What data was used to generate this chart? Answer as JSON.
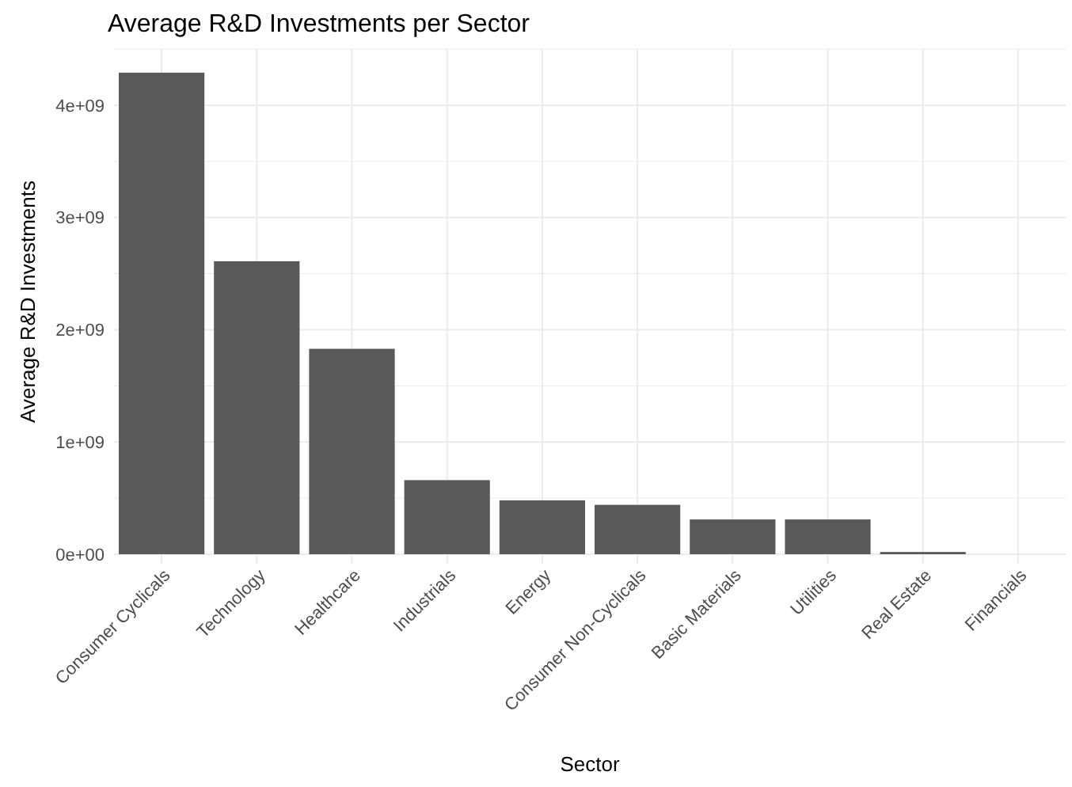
{
  "chart_data": {
    "type": "bar",
    "title": "Average R&D Investments per Sector",
    "xlabel": "Sector",
    "ylabel": "Average R&D Investments",
    "categories": [
      "Consumer Cyclicals",
      "Technology",
      "Healthcare",
      "Industrials",
      "Energy",
      "Consumer Non-Cyclicals",
      "Basic Materials",
      "Utilities",
      "Real Estate",
      "Financials"
    ],
    "values": [
      4290000000.0,
      2610000000.0,
      1830000000.0,
      660000000.0,
      480000000.0,
      440000000.0,
      310000000.0,
      310000000.0,
      20000000.0,
      0
    ],
    "color": "#595959",
    "ylim": [
      0,
      4500000000.0
    ],
    "yticks": [
      {
        "value": 0,
        "label": "0e+00"
      },
      {
        "value": 1000000000.0,
        "label": "1e+09"
      },
      {
        "value": 2000000000.0,
        "label": "2e+09"
      },
      {
        "value": 3000000000.0,
        "label": "3e+09"
      },
      {
        "value": 4000000000.0,
        "label": "4e+09"
      }
    ],
    "grid": true
  }
}
